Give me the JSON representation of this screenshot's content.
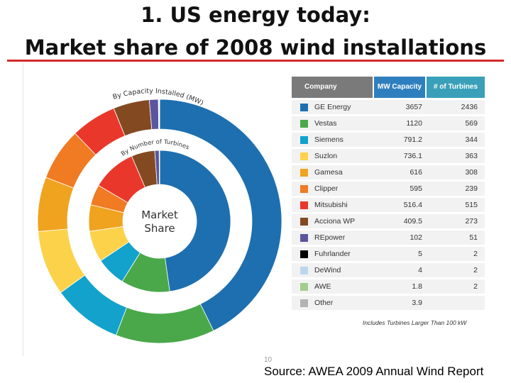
{
  "slide": {
    "title_line1": "1.   US energy today:",
    "title_line2": "Market share of 2008 wind installations",
    "page_number": "10",
    "source": "Source:  AWEA 2009 Annual Wind Report"
  },
  "colors": {
    "title_underline": "#d42a2a",
    "header_company": "#7a7a7a",
    "header_mw": "#2f7fbf",
    "header_turbines": "#3aa0b9"
  },
  "chart_data": {
    "type": "pie",
    "variant": "nested-donut",
    "outer_ring_label": "By Capacity Installed (MW)",
    "inner_ring_label": "By Number of Turbines",
    "center_label_line1": "Market",
    "center_label_line2": "Share",
    "columns": [
      "Company",
      "MW Capacity",
      "# of Turbines"
    ],
    "footnote": "Includes Turbines Larger Than 100 kW",
    "rows": [
      {
        "company": "GE Energy",
        "mw": "3657",
        "turbines": "2436",
        "color": "#1d6fb0"
      },
      {
        "company": "Vestas",
        "mw": "1120",
        "turbines": "569",
        "color": "#4aa84a"
      },
      {
        "company": "Siemens",
        "mw": "791.2",
        "turbines": "344",
        "color": "#12a2cc"
      },
      {
        "company": "Suzlon",
        "mw": "736.1",
        "turbines": "363",
        "color": "#fcd24b"
      },
      {
        "company": "Gamesa",
        "mw": "616",
        "turbines": "308",
        "color": "#f0a31f"
      },
      {
        "company": "Clipper",
        "mw": "595",
        "turbines": "239",
        "color": "#f07b23"
      },
      {
        "company": "Mitsubishi",
        "mw": "516.4",
        "turbines": "515",
        "color": "#e9382b"
      },
      {
        "company": "Acciona WP",
        "mw": "409.5",
        "turbines": "273",
        "color": "#834a22"
      },
      {
        "company": "REpower",
        "mw": "102",
        "turbines": "51",
        "color": "#5b55a0"
      },
      {
        "company": "Fuhrlander",
        "mw": "5",
        "turbines": "2",
        "color": "#000000"
      },
      {
        "company": "DeWind",
        "mw": "4",
        "turbines": "2",
        "color": "#bcd6ee"
      },
      {
        "company": "AWE",
        "mw": "1.8",
        "turbines": "2",
        "color": "#a0cf8c"
      },
      {
        "company": "Other",
        "mw": "3.9",
        "turbines": "",
        "color": "#b3b3b3"
      }
    ]
  }
}
